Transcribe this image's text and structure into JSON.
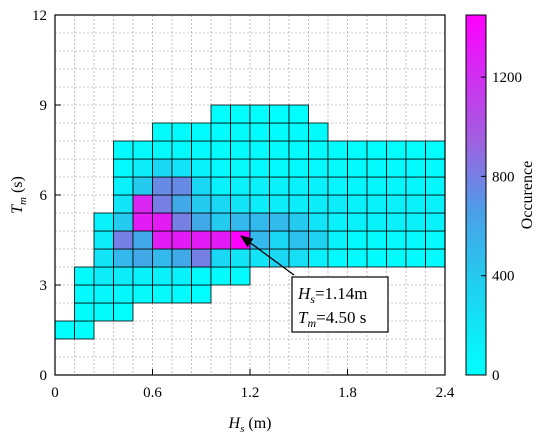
{
  "chart_data": {
    "type": "heatmap",
    "title": "",
    "xlabel_base": "H",
    "xlabel_sub": "s",
    "xlabel_unit": " (m)",
    "ylabel_base": "T",
    "ylabel_sub": "m",
    "ylabel_unit": " (s)",
    "xlim": [
      0,
      2.4
    ],
    "ylim": [
      0,
      12
    ],
    "xticks": [
      "0",
      "0.6",
      "1.2",
      "1.8",
      "2.4"
    ],
    "yticks": [
      "0",
      "3",
      "6",
      "9",
      "12"
    ],
    "x_bin_width": 0.12,
    "y_bin_height": 0.6,
    "grid": true,
    "colorbar": {
      "label": "Occurence",
      "range": [
        0,
        1450
      ],
      "ticks": [
        "0",
        "400",
        "800",
        "1200"
      ],
      "colors": [
        "#00ffff",
        "#4aa0e8",
        "#a060e0",
        "#ff00ff"
      ]
    },
    "rows": [
      {
        "y": 1.5,
        "cells": [
          [
            0.06,
            1
          ],
          [
            0.18,
            1
          ]
        ]
      },
      {
        "y": 2.1,
        "cells": [
          [
            0.18,
            20
          ],
          [
            0.3,
            30
          ],
          [
            0.42,
            10
          ]
        ]
      },
      {
        "y": 2.7,
        "cells": [
          [
            0.18,
            30
          ],
          [
            0.3,
            60
          ],
          [
            0.42,
            60
          ],
          [
            0.54,
            40
          ],
          [
            0.66,
            40
          ],
          [
            0.78,
            20
          ],
          [
            0.9,
            10
          ]
        ]
      },
      {
        "y": 3.3,
        "cells": [
          [
            0.18,
            40
          ],
          [
            0.3,
            150
          ],
          [
            0.42,
            150
          ],
          [
            0.54,
            100
          ],
          [
            0.66,
            100
          ],
          [
            0.78,
            100
          ],
          [
            0.9,
            50
          ],
          [
            1.02,
            30
          ],
          [
            1.14,
            20
          ]
        ]
      },
      {
        "y": 3.9,
        "cells": [
          [
            0.3,
            200
          ],
          [
            0.42,
            500
          ],
          [
            0.54,
            600
          ],
          [
            0.66,
            500
          ],
          [
            0.78,
            600
          ],
          [
            0.9,
            800
          ],
          [
            1.02,
            300
          ],
          [
            1.14,
            200
          ],
          [
            1.26,
            200
          ],
          [
            1.38,
            300
          ],
          [
            1.5,
            250
          ],
          [
            1.62,
            100
          ],
          [
            1.74,
            50
          ],
          [
            1.86,
            20
          ],
          [
            1.98,
            20
          ],
          [
            2.1,
            20
          ],
          [
            2.22,
            20
          ],
          [
            2.34,
            20
          ]
        ]
      },
      {
        "y": 4.5,
        "cells": [
          [
            0.3,
            150
          ],
          [
            0.42,
            800
          ],
          [
            0.54,
            600
          ],
          [
            0.66,
            1300
          ],
          [
            0.78,
            1300
          ],
          [
            0.9,
            1300
          ],
          [
            1.02,
            1300
          ],
          [
            1.14,
            1450
          ],
          [
            1.26,
            500
          ],
          [
            1.38,
            300
          ],
          [
            1.5,
            450
          ],
          [
            1.62,
            350
          ],
          [
            1.74,
            100
          ],
          [
            1.86,
            40
          ],
          [
            1.98,
            40
          ],
          [
            2.1,
            40
          ],
          [
            2.22,
            40
          ],
          [
            2.34,
            40
          ]
        ]
      },
      {
        "y": 5.1,
        "cells": [
          [
            0.3,
            100
          ],
          [
            0.42,
            400
          ],
          [
            0.54,
            1300
          ],
          [
            0.66,
            1300
          ],
          [
            0.78,
            800
          ],
          [
            0.9,
            600
          ],
          [
            1.02,
            400
          ],
          [
            1.14,
            500
          ],
          [
            1.26,
            500
          ],
          [
            1.38,
            500
          ],
          [
            1.5,
            400
          ],
          [
            1.62,
            200
          ],
          [
            1.74,
            100
          ],
          [
            1.86,
            100
          ],
          [
            1.98,
            100
          ],
          [
            2.1,
            100
          ],
          [
            2.22,
            100
          ],
          [
            2.34,
            100
          ]
        ]
      },
      {
        "y": 5.7,
        "cells": [
          [
            0.42,
            200
          ],
          [
            0.54,
            1250
          ],
          [
            0.66,
            800
          ],
          [
            0.78,
            600
          ],
          [
            0.9,
            400
          ],
          [
            1.02,
            300
          ],
          [
            1.14,
            200
          ],
          [
            1.26,
            150
          ],
          [
            1.38,
            150
          ],
          [
            1.5,
            150
          ],
          [
            1.62,
            150
          ],
          [
            1.74,
            150
          ],
          [
            1.86,
            100
          ],
          [
            1.98,
            100
          ],
          [
            2.1,
            100
          ],
          [
            2.22,
            100
          ],
          [
            2.34,
            100
          ]
        ]
      },
      {
        "y": 6.3,
        "cells": [
          [
            0.42,
            100
          ],
          [
            0.54,
            400
          ],
          [
            0.66,
            750
          ],
          [
            0.78,
            750
          ],
          [
            0.9,
            300
          ],
          [
            1.02,
            100
          ],
          [
            1.14,
            100
          ],
          [
            1.26,
            100
          ],
          [
            1.38,
            100
          ],
          [
            1.5,
            100
          ],
          [
            1.62,
            100
          ],
          [
            1.74,
            80
          ],
          [
            1.86,
            60
          ],
          [
            1.98,
            60
          ],
          [
            2.1,
            60
          ],
          [
            2.22,
            60
          ],
          [
            2.34,
            60
          ]
        ]
      },
      {
        "y": 6.9,
        "cells": [
          [
            0.42,
            50
          ],
          [
            0.54,
            150
          ],
          [
            0.66,
            300
          ],
          [
            0.78,
            200
          ],
          [
            0.9,
            100
          ],
          [
            1.02,
            50
          ],
          [
            1.14,
            50
          ],
          [
            1.26,
            50
          ],
          [
            1.38,
            50
          ],
          [
            1.5,
            50
          ],
          [
            1.62,
            50
          ],
          [
            1.74,
            40
          ],
          [
            1.86,
            30
          ],
          [
            1.98,
            30
          ],
          [
            2.1,
            30
          ],
          [
            2.22,
            30
          ],
          [
            2.34,
            30
          ]
        ]
      },
      {
        "y": 7.5,
        "cells": [
          [
            0.42,
            30
          ],
          [
            0.54,
            50
          ],
          [
            0.66,
            50
          ],
          [
            0.78,
            50
          ],
          [
            0.9,
            40
          ],
          [
            1.02,
            30
          ],
          [
            1.14,
            30
          ],
          [
            1.26,
            30
          ],
          [
            1.38,
            30
          ],
          [
            1.5,
            30
          ],
          [
            1.62,
            30
          ],
          [
            1.74,
            20
          ],
          [
            1.86,
            10
          ],
          [
            1.98,
            10
          ],
          [
            2.1,
            10
          ],
          [
            2.22,
            10
          ],
          [
            2.34,
            10
          ]
        ]
      },
      {
        "y": 8.1,
        "cells": [
          [
            0.66,
            20
          ],
          [
            0.78,
            20
          ],
          [
            0.9,
            20
          ],
          [
            1.02,
            20
          ],
          [
            1.14,
            20
          ],
          [
            1.26,
            20
          ],
          [
            1.38,
            20
          ],
          [
            1.5,
            20
          ],
          [
            1.62,
            20
          ]
        ]
      },
      {
        "y": 8.7,
        "cells": [
          [
            1.02,
            10
          ],
          [
            1.14,
            10
          ],
          [
            1.26,
            10
          ],
          [
            1.38,
            10
          ],
          [
            1.5,
            10
          ]
        ]
      }
    ],
    "annotation": {
      "line1_base": "H",
      "line1_sub": "s",
      "line1_value": "=1.14m",
      "line2_base": "T",
      "line2_sub": "m",
      "line2_value": "=4.50 s",
      "point": [
        1.14,
        4.5
      ]
    }
  }
}
